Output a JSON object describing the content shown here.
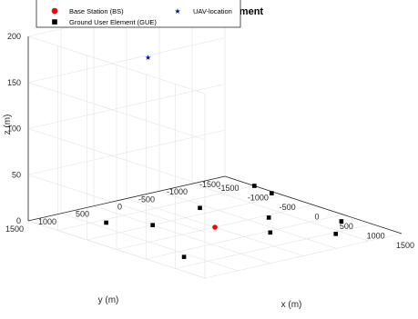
{
  "chart_data": {
    "type": "scatter",
    "projection": "3d",
    "title": "...nment",
    "xlabel": "x (m)",
    "ylabel": "y (m)",
    "zlabel": "z (m)",
    "xlim": [
      -1500,
      1500
    ],
    "ylim": [
      -1500,
      1500
    ],
    "zlim": [
      0,
      200
    ],
    "x_ticks": [
      -1500,
      -1000,
      -500,
      0,
      500,
      1000,
      1500
    ],
    "y_ticks": [
      -1500,
      -1000,
      -500,
      0,
      500,
      1000,
      1500
    ],
    "z_ticks": [
      0,
      50,
      100,
      150,
      200
    ],
    "grid": true,
    "legend_position": "top-left",
    "series": [
      {
        "name": "Base Station (BS)",
        "marker": "circle",
        "color": "#ff0000",
        "points": [
          {
            "x": 0,
            "y": 0,
            "z": 0
          }
        ]
      },
      {
        "name": "Ground User Element (GUE)",
        "marker": "square",
        "color": "#000000",
        "points": [
          {
            "x": -900,
            "y": 850,
            "z": 0
          },
          {
            "x": -500,
            "y": 500,
            "z": 0
          },
          {
            "x": -700,
            "y": -400,
            "z": 0
          },
          {
            "x": 700,
            "y": 1100,
            "z": 0
          },
          {
            "x": 550,
            "y": -350,
            "z": 0
          },
          {
            "x": 80,
            "y": -750,
            "z": 0
          },
          {
            "x": 700,
            "y": -1300,
            "z": 0
          },
          {
            "x": 1050,
            "y": -900,
            "z": 0
          },
          {
            "x": -1000,
            "y": -1500,
            "z": 0
          },
          {
            "x": -650,
            "y": -1450,
            "z": 0
          }
        ]
      },
      {
        "name": "UAV-location",
        "marker": "star",
        "color": "#0000cc",
        "points": [
          {
            "x": -300,
            "y": 750,
            "z": 190
          }
        ]
      }
    ]
  }
}
